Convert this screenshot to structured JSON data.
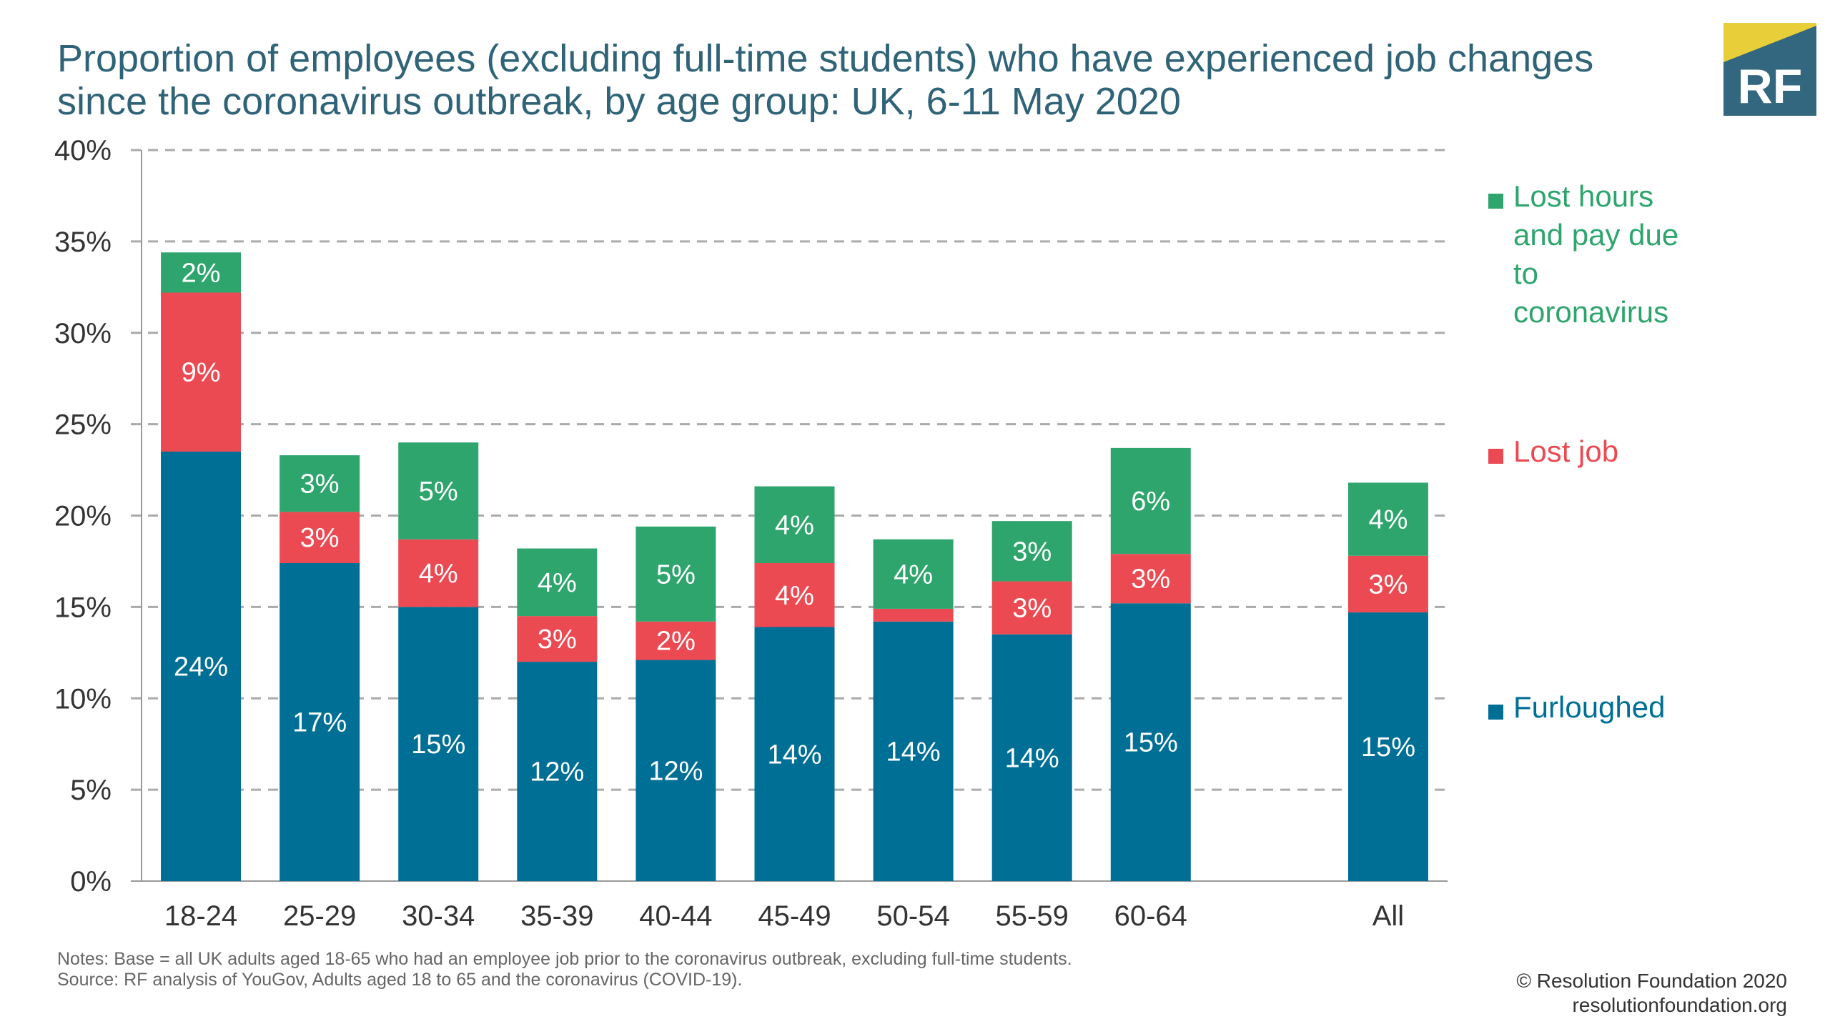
{
  "title_lines": [
    "Proportion of employees (excluding full-time students) who have experienced job changes",
    "since the coronavirus outbreak, by age group: UK, 6-11 May 2020"
  ],
  "logo": {
    "text": "RF",
    "bg": "#33667f",
    "accent": "#e8cf3a"
  },
  "colors": {
    "furloughed": "#006f96",
    "lost_job": "#eb4a52",
    "lost_hours": "#2fa56e"
  },
  "chart_data": {
    "type": "bar",
    "stacked": true,
    "categories": [
      "18-24",
      "25-29",
      "30-34",
      "35-39",
      "40-44",
      "45-49",
      "50-54",
      "55-59",
      "60-64",
      "All"
    ],
    "gap_before_last": true,
    "series": [
      {
        "name": "Furloughed",
        "color": "#006f96",
        "values": [
          23.5,
          17.4,
          15.0,
          12.0,
          12.1,
          13.9,
          14.2,
          13.5,
          15.2,
          14.7
        ],
        "labels": [
          "24%",
          "17%",
          "15%",
          "12%",
          "12%",
          "14%",
          "14%",
          "14%",
          "15%",
          "15%"
        ]
      },
      {
        "name": "Lost job",
        "color": "#eb4a52",
        "values": [
          8.7,
          2.8,
          3.7,
          2.5,
          2.1,
          3.5,
          0.7,
          2.9,
          2.7,
          3.1
        ],
        "labels": [
          "9%",
          "3%",
          "4%",
          "3%",
          "2%",
          "4%",
          "",
          "3%",
          "3%",
          "3%"
        ]
      },
      {
        "name": "Lost hours and pay due to coronavirus",
        "color": "#2fa56e",
        "values": [
          2.2,
          3.1,
          5.3,
          3.7,
          5.2,
          4.2,
          3.8,
          3.3,
          5.8,
          4.0
        ],
        "labels": [
          "2%",
          "3%",
          "5%",
          "4%",
          "5%",
          "4%",
          "4%",
          "3%",
          "6%",
          "4%"
        ]
      }
    ],
    "legend": [
      {
        "lines": [
          "Lost hours",
          "and pay due",
          "to",
          "coronavirus"
        ],
        "color": "#2fa56e"
      },
      {
        "lines": [
          "Lost job"
        ],
        "color": "#eb4a52"
      },
      {
        "lines": [
          "Furloughed"
        ],
        "color": "#006f96"
      }
    ],
    "legend_placement": "right",
    "ylim": [
      0,
      40
    ],
    "yticks": [
      0,
      5,
      10,
      15,
      20,
      25,
      30,
      35,
      40
    ],
    "ytick_labels": [
      "0%",
      "5%",
      "10%",
      "15%",
      "20%",
      "25%",
      "30%",
      "35%",
      "40%"
    ],
    "grid": "dashed-horizontal"
  },
  "notes_lines": [
    "Notes: Base = all UK adults aged 18-65 who had an employee job prior to the coronavirus outbreak, excluding full-time students.",
    "Source: RF analysis of YouGov, Adults aged 18 to 65 and the coronavirus (COVID-19)."
  ],
  "credits_lines": [
    "© Resolution Foundation 2020",
    "resolutionfoundation.org"
  ]
}
